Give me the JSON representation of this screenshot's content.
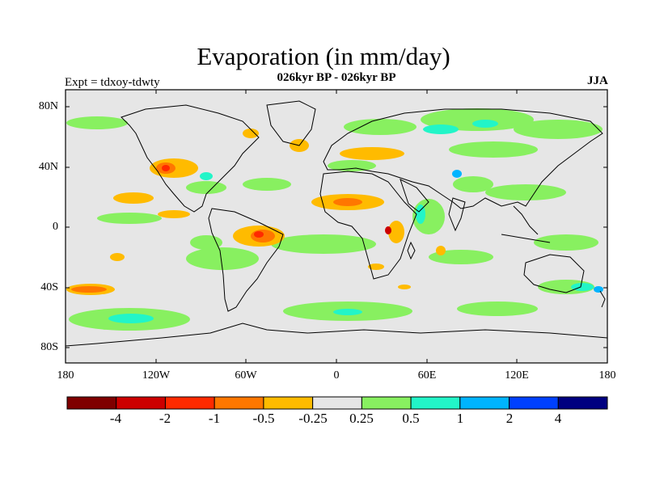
{
  "title": "Evaporation (in mm/day)",
  "subtitle": "026kyr BP - 026kyr BP",
  "experiment": "Expt = tdxoy-tdwty",
  "season": "JJA",
  "map": {
    "lat_ticks": [
      "80N",
      "40N",
      "0",
      "40S",
      "80S"
    ],
    "lon_ticks": [
      "180",
      "120W",
      "60W",
      "0",
      "60E",
      "120E",
      "180"
    ],
    "background": "#e6e6e6"
  },
  "colorbar": {
    "colors": [
      "#7f0000",
      "#cc0000",
      "#ff2a00",
      "#ff7700",
      "#ffbb00",
      "#e6e6e6",
      "#88f060",
      "#22f5c8",
      "#00b4ff",
      "#0040ff",
      "#000080"
    ],
    "labels": [
      "-4",
      "-2",
      "-1",
      "-0.5",
      "-0.25",
      "0.25",
      "0.5",
      "1",
      "2",
      "4"
    ]
  }
}
